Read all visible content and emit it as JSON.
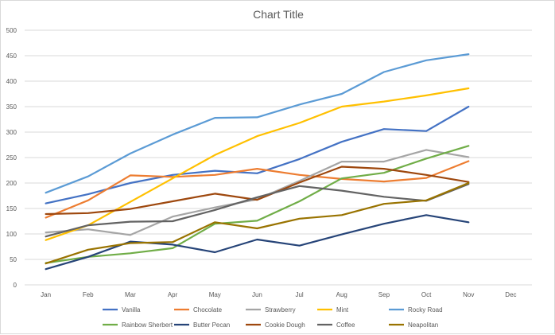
{
  "chart_data": {
    "type": "line",
    "title": "Chart Title",
    "xlabel": "",
    "ylabel": "",
    "categories": [
      "Jan",
      "Feb",
      "Mar",
      "Apr",
      "May",
      "Jun",
      "Jul",
      "Aug",
      "Sep",
      "Oct",
      "Nov",
      "Dec"
    ],
    "ylim": [
      0,
      500
    ],
    "yticks": [
      0,
      50,
      100,
      150,
      200,
      250,
      300,
      350,
      400,
      450,
      500
    ],
    "grid": "horizontal",
    "legend_position": "bottom",
    "series": [
      {
        "name": "Vanilla",
        "color": "#4472C4",
        "values": [
          160,
          178,
          200,
          216,
          224,
          219,
          247,
          281,
          306,
          302,
          350,
          null
        ]
      },
      {
        "name": "Chocolate",
        "color": "#ED7D31",
        "values": [
          132,
          166,
          215,
          212,
          216,
          228,
          216,
          208,
          203,
          210,
          243,
          null
        ]
      },
      {
        "name": "Strawberry",
        "color": "#A5A5A5",
        "values": [
          103,
          109,
          98,
          134,
          152,
          168,
          204,
          242,
          242,
          265,
          251,
          null
        ]
      },
      {
        "name": "Mint",
        "color": "#FFC000",
        "values": [
          88,
          117,
          163,
          209,
          255,
          292,
          318,
          350,
          360,
          372,
          386,
          null
        ]
      },
      {
        "name": "Rocky Road",
        "color": "#5B9BD5",
        "values": [
          181,
          213,
          258,
          295,
          328,
          329,
          354,
          375,
          418,
          441,
          453,
          null
        ]
      },
      {
        "name": "Rainbow Sherbert",
        "color": "#70AD47",
        "values": [
          43,
          55,
          62,
          72,
          120,
          126,
          164,
          209,
          220,
          248,
          273,
          null
        ]
      },
      {
        "name": "Butter Pecan",
        "color": "#264478",
        "values": [
          31,
          55,
          85,
          79,
          64,
          89,
          77,
          99,
          120,
          137,
          123,
          null
        ]
      },
      {
        "name": "Cookie Dough",
        "color": "#9E480E",
        "values": [
          139,
          141,
          149,
          164,
          179,
          167,
          201,
          232,
          228,
          216,
          202,
          null
        ]
      },
      {
        "name": "Coffee",
        "color": "#636363",
        "values": [
          95,
          117,
          124,
          125,
          147,
          172,
          194,
          185,
          173,
          165,
          198,
          null
        ]
      },
      {
        "name": "Neapolitan",
        "color": "#997300",
        "values": [
          42,
          69,
          82,
          84,
          123,
          111,
          130,
          137,
          159,
          166,
          200,
          null
        ]
      }
    ]
  }
}
